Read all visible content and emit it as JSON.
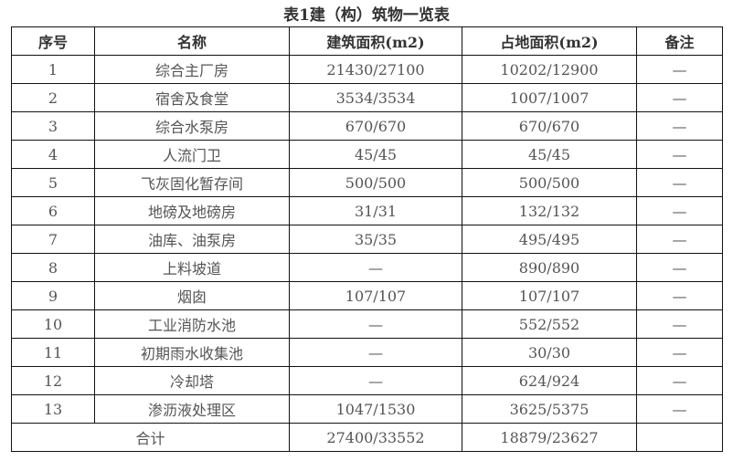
{
  "title": "表1建（构）筑物一览表",
  "headers": [
    "序号",
    "名称",
    "建筑面积(m2)",
    "占地面积(m2)",
    "备注"
  ],
  "rows": [
    [
      "1",
      "综合主厂房",
      "21430/27100",
      "10202/12900",
      "—"
    ],
    [
      "2",
      "宿舍及食堂",
      "3534/3534",
      "1007/1007",
      "—"
    ],
    [
      "3",
      "综合水泵房",
      "670/670",
      "670/670",
      "—"
    ],
    [
      "4",
      "人流门卫",
      "45/45",
      "45/45",
      "—"
    ],
    [
      "5",
      "飞灰固化暂存间",
      "500/500",
      "500/500",
      "—"
    ],
    [
      "6",
      "地磅及地磅房",
      "31/31",
      "132/132",
      "—"
    ],
    [
      "7",
      "油库、油泵房",
      "35/35",
      "495/495",
      "—"
    ],
    [
      "8",
      "上料坡道",
      "—",
      "890/890",
      "—"
    ],
    [
      "9",
      "烟囱",
      "107/107",
      "107/107",
      "—"
    ],
    [
      "10",
      "工业消防水池",
      "—",
      "552/552",
      "—"
    ],
    [
      "11",
      "初期雨水收集池",
      "—",
      "30/30",
      "—"
    ],
    [
      "12",
      "冷却塔",
      "—",
      "624/924",
      "—"
    ],
    [
      "13",
      "渗沥液处理区",
      "1047/1530",
      "3625/5375",
      "—"
    ]
  ],
  "total": {
    "label": "合计",
    "building_area": "27400/33552",
    "land_area": "18879/23627",
    "note": ""
  }
}
